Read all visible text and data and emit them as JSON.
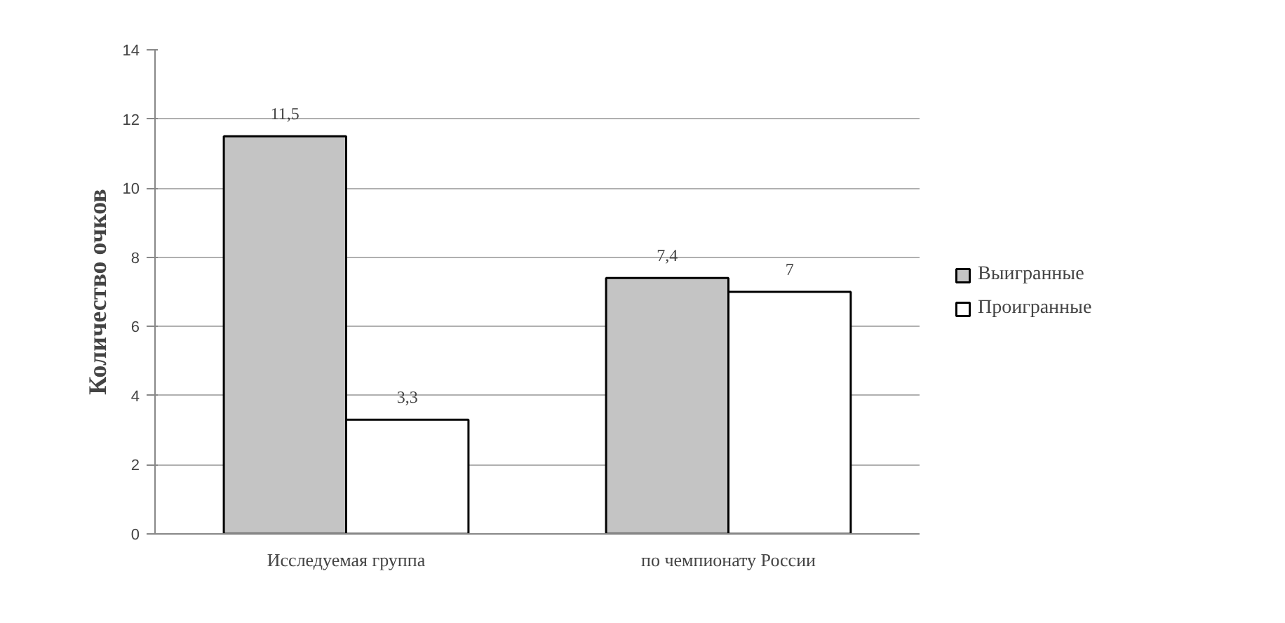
{
  "chart_data": {
    "type": "bar",
    "ylabel": "Количество очков",
    "categories": [
      "Исследуемая группа",
      "по чемпионату России"
    ],
    "series": [
      {
        "name": "Выигранные",
        "color": "#c4c4c4",
        "values": [
          11.5,
          7.4
        ],
        "value_labels": [
          "11,5",
          "7,4"
        ]
      },
      {
        "name": "Проигранные",
        "color": "#ffffff",
        "values": [
          3.3,
          7
        ],
        "value_labels": [
          "3,3",
          "7"
        ]
      }
    ],
    "ylim": [
      0,
      14
    ],
    "yticks": [
      0,
      2,
      4,
      6,
      8,
      10,
      12,
      14
    ],
    "grid": "y",
    "legend": "right"
  }
}
